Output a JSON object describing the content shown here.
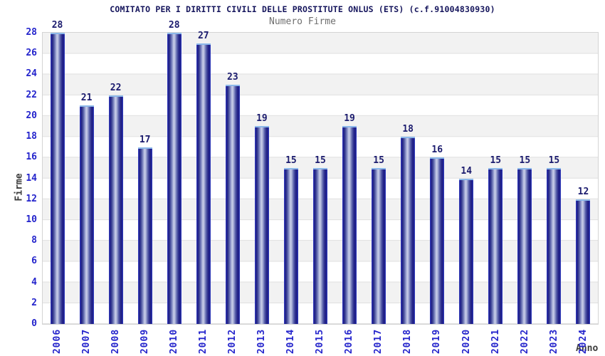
{
  "header": {
    "title": "COMITATO PER I DIRITTI CIVILI DELLE PROSTITUTE ONLUS (ETS) (c.f.91004830930)",
    "subtitle": "Numero Firme"
  },
  "chart_data": {
    "type": "bar",
    "title": "Numero Firme",
    "categories": [
      "2006",
      "2007",
      "2008",
      "2009",
      "2010",
      "2011",
      "2012",
      "2013",
      "2014",
      "2015",
      "2016",
      "2017",
      "2018",
      "2019",
      "2020",
      "2021",
      "2022",
      "2023",
      "2024"
    ],
    "values": [
      28,
      21,
      22,
      17,
      28,
      27,
      23,
      19,
      15,
      15,
      19,
      15,
      18,
      16,
      14,
      15,
      15,
      15,
      12
    ],
    "xlabel": "Anno",
    "ylabel": "Firme",
    "ylim": [
      0,
      28
    ],
    "ytick_step": 2,
    "grid": "horizontal-bands",
    "legend_position": "none",
    "bar_value_labels": true
  },
  "colors": {
    "title_text": "#15155c",
    "subtitle_text": "#6e6e6e",
    "tick_label": "#2424cc",
    "value_label": "#1b1b6e",
    "axis_title": "#3c3c3c",
    "band_gray": "#f2f2f2",
    "band_white": "#ffffff",
    "grid_line": "#e0e0e0",
    "plot_border": "#d4d4d4",
    "bar_dark": "#1d1d85",
    "bar_highlight": "#cacfe9",
    "bar_edge": "#3644cf",
    "bar_top_cap": "#8cb8ea"
  }
}
